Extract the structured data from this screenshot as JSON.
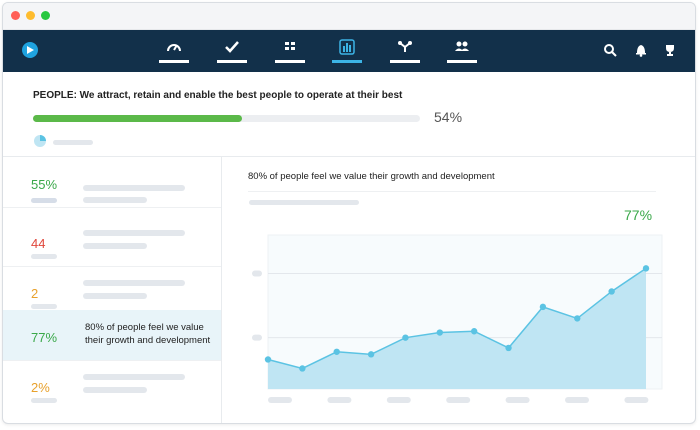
{
  "window": {
    "dots": [
      "#ff5f57",
      "#febc2e",
      "#28c840"
    ]
  },
  "nav": {
    "icons": [
      "speedometer-icon",
      "checkmark-icon",
      "list-icon",
      "bar-chart-icon",
      "network-icon",
      "people-icon"
    ],
    "active_index": 3,
    "right_icons": [
      "search-icon",
      "bell-icon",
      "trophy-icon"
    ]
  },
  "header": {
    "title": "PEOPLE: We attract, retain and enable the best people to operate at their best",
    "progress": 0.54,
    "percent_label": "54%",
    "accent": "#5bb949"
  },
  "sidebar": {
    "items": [
      {
        "value": "55%",
        "color": "#3aa84a",
        "text": ""
      },
      {
        "value": "44",
        "color": "#e0473c",
        "text": ""
      },
      {
        "value": "2",
        "color": "#e8a12c",
        "text": ""
      },
      {
        "value": "77%",
        "color": "#3aa84a",
        "text": "80% of people feel we value their growth and development",
        "active": true
      },
      {
        "value": "2%",
        "color": "#e8a12c",
        "text": ""
      }
    ]
  },
  "chart_panel": {
    "title": "80% of people feel we value their growth and development",
    "percent_label": "77%"
  },
  "chart_data": {
    "type": "area",
    "x": [
      1,
      2,
      3,
      4,
      5,
      6,
      7,
      8,
      9,
      10,
      11,
      12
    ],
    "values": [
      23,
      16,
      29,
      27,
      40,
      44,
      45,
      32,
      64,
      55,
      76,
      94
    ],
    "ylim": [
      0,
      120
    ],
    "grid": true,
    "color": "#5bc3e3",
    "fill": "#bfe5f3"
  }
}
